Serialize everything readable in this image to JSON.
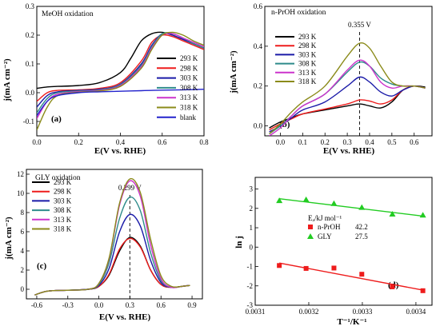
{
  "chart_data": [
    {
      "id": "a",
      "type": "line",
      "title": "MeOH oxidation",
      "panel_label": "(a)",
      "xlabel": "E(V vs. RHE)",
      "ylabel": "j(mA cm⁻²)",
      "xlim": [
        0.0,
        0.8
      ],
      "ylim": [
        -0.15,
        0.3
      ],
      "xticks": [
        "0.0",
        "0.2",
        "0.4",
        "0.6",
        "0.8"
      ],
      "xtick_values": [
        0.0,
        0.2,
        0.4,
        0.6,
        0.8
      ],
      "yticks": [
        "-0.1",
        "0.0",
        "0.1",
        "0.2",
        "0.3"
      ],
      "ytick_values": [
        -0.1,
        0.0,
        0.1,
        0.2,
        0.3
      ],
      "legend_position": "right",
      "series": [
        {
          "name": "293 K",
          "color": "#000000",
          "x": [
            0,
            0.05,
            0.1,
            0.2,
            0.3,
            0.4,
            0.45,
            0.5,
            0.55,
            0.6,
            0.65,
            0.7,
            0.75,
            0.8
          ],
          "y": [
            0.015,
            0.02,
            0.022,
            0.025,
            0.035,
            0.07,
            0.12,
            0.18,
            0.205,
            0.21,
            0.2,
            0.185,
            0.17,
            0.155
          ]
        },
        {
          "name": "298 K",
          "color": "#ee1c1c",
          "x": [
            0,
            0.05,
            0.1,
            0.2,
            0.3,
            0.4,
            0.5,
            0.55,
            0.6,
            0.65,
            0.7,
            0.75,
            0.8
          ],
          "y": [
            -0.03,
            0.0,
            0.008,
            0.01,
            0.015,
            0.035,
            0.11,
            0.175,
            0.2,
            0.195,
            0.18,
            0.165,
            0.15
          ]
        },
        {
          "name": "303 K",
          "color": "#1a1aa8",
          "x": [
            0,
            0.05,
            0.1,
            0.2,
            0.3,
            0.4,
            0.5,
            0.55,
            0.6,
            0.65,
            0.7,
            0.75,
            0.8
          ],
          "y": [
            -0.05,
            -0.01,
            0.003,
            0.008,
            0.012,
            0.03,
            0.1,
            0.165,
            0.205,
            0.2,
            0.185,
            0.17,
            0.155
          ]
        },
        {
          "name": "308 K",
          "color": "#2e8b8b",
          "x": [
            0,
            0.05,
            0.1,
            0.2,
            0.3,
            0.4,
            0.5,
            0.55,
            0.6,
            0.65,
            0.7,
            0.75,
            0.8
          ],
          "y": [
            -0.07,
            -0.02,
            0.0,
            0.006,
            0.01,
            0.028,
            0.095,
            0.16,
            0.205,
            0.205,
            0.19,
            0.17,
            0.155
          ]
        },
        {
          "name": "313 K",
          "color": "#cc33cc",
          "x": [
            0,
            0.05,
            0.1,
            0.2,
            0.3,
            0.4,
            0.5,
            0.55,
            0.6,
            0.65,
            0.7,
            0.75,
            0.8
          ],
          "y": [
            -0.09,
            -0.03,
            -0.005,
            0.004,
            0.008,
            0.025,
            0.09,
            0.155,
            0.2,
            0.205,
            0.19,
            0.175,
            0.16
          ]
        },
        {
          "name": "318 K",
          "color": "#8b8b1a",
          "x": [
            0,
            0.05,
            0.1,
            0.2,
            0.3,
            0.4,
            0.5,
            0.55,
            0.6,
            0.65,
            0.7,
            0.75,
            0.8
          ],
          "y": [
            -0.13,
            -0.05,
            -0.01,
            0.002,
            0.006,
            0.022,
            0.085,
            0.15,
            0.2,
            0.21,
            0.2,
            0.18,
            0.165
          ]
        },
        {
          "name": "blank",
          "color": "#2222cc",
          "x": [
            0,
            0.05,
            0.1,
            0.2,
            0.3,
            0.4,
            0.5,
            0.6,
            0.7,
            0.8
          ],
          "y": [
            -0.08,
            -0.03,
            -0.01,
            0.0,
            0.003,
            0.005,
            0.007,
            0.009,
            0.01,
            0.012
          ]
        }
      ]
    },
    {
      "id": "b",
      "type": "line",
      "title": "n-PrOH oxidation",
      "panel_label": "(b)",
      "xlabel": "E(V vs. RHE)",
      "ylabel": "j(mA cm⁻²)",
      "xlim": [
        -0.07,
        0.68
      ],
      "ylim": [
        -0.05,
        0.6
      ],
      "xticks": [
        "0.0",
        "0.1",
        "0.2",
        "0.3",
        "0.4",
        "0.5",
        "0.6"
      ],
      "xtick_values": [
        0.0,
        0.1,
        0.2,
        0.3,
        0.4,
        0.5,
        0.6
      ],
      "yticks": [
        "0.0",
        "0.2",
        "0.4",
        "0.6"
      ],
      "ytick_values": [
        0.0,
        0.2,
        0.4,
        0.6
      ],
      "annotation": {
        "text": "0.355 V",
        "x": 0.355
      },
      "legend_position": "top-left",
      "series": [
        {
          "name": "293 K",
          "color": "#000000",
          "x": [
            -0.05,
            0.0,
            0.05,
            0.1,
            0.2,
            0.3,
            0.355,
            0.4,
            0.45,
            0.5,
            0.55,
            0.6,
            0.65
          ],
          "y": [
            -0.01,
            0.02,
            0.04,
            0.06,
            0.08,
            0.1,
            0.11,
            0.1,
            0.09,
            0.12,
            0.18,
            0.2,
            0.195
          ]
        },
        {
          "name": "298 K",
          "color": "#ee1c1c",
          "x": [
            -0.05,
            0.0,
            0.05,
            0.1,
            0.2,
            0.3,
            0.355,
            0.4,
            0.45,
            0.5,
            0.55,
            0.6,
            0.65
          ],
          "y": [
            -0.02,
            0.01,
            0.035,
            0.06,
            0.085,
            0.11,
            0.13,
            0.125,
            0.11,
            0.13,
            0.18,
            0.2,
            0.19
          ]
        },
        {
          "name": "303 K",
          "color": "#1a1aa8",
          "x": [
            -0.05,
            0.0,
            0.05,
            0.1,
            0.2,
            0.3,
            0.355,
            0.4,
            0.45,
            0.5,
            0.55,
            0.6,
            0.65
          ],
          "y": [
            -0.03,
            0.0,
            0.04,
            0.08,
            0.12,
            0.2,
            0.245,
            0.22,
            0.17,
            0.15,
            0.18,
            0.2,
            0.19
          ]
        },
        {
          "name": "308 K",
          "color": "#2e8b8b",
          "x": [
            -0.05,
            0.0,
            0.05,
            0.1,
            0.2,
            0.3,
            0.355,
            0.4,
            0.45,
            0.5,
            0.55,
            0.6,
            0.65
          ],
          "y": [
            -0.04,
            0.0,
            0.05,
            0.1,
            0.16,
            0.27,
            0.32,
            0.3,
            0.24,
            0.21,
            0.2,
            0.2,
            0.19
          ]
        },
        {
          "name": "313 K",
          "color": "#cc33cc",
          "x": [
            -0.05,
            0.0,
            0.05,
            0.1,
            0.2,
            0.3,
            0.355,
            0.4,
            0.45,
            0.5,
            0.55,
            0.6,
            0.65
          ],
          "y": [
            -0.05,
            -0.01,
            0.05,
            0.1,
            0.16,
            0.28,
            0.33,
            0.3,
            0.22,
            0.19,
            0.2,
            0.2,
            0.19
          ]
        },
        {
          "name": "318 K",
          "color": "#8b8b1a",
          "x": [
            -0.05,
            0.0,
            0.05,
            0.1,
            0.2,
            0.3,
            0.355,
            0.4,
            0.45,
            0.5,
            0.55,
            0.6,
            0.65
          ],
          "y": [
            -0.04,
            0.01,
            0.07,
            0.12,
            0.2,
            0.35,
            0.415,
            0.39,
            0.3,
            0.22,
            0.2,
            0.2,
            0.19
          ]
        }
      ]
    },
    {
      "id": "c",
      "type": "line",
      "title": "GLY oxidation",
      "panel_label": "(c)",
      "xlabel": "E(V vs. RHE)",
      "ylabel": "j(mA cm⁻²)",
      "xlim": [
        -0.7,
        1.0
      ],
      "ylim": [
        -1,
        12.5
      ],
      "xticks": [
        "-0.6",
        "-0.3",
        "0.0",
        "0.3",
        "0.6",
        "0.9"
      ],
      "xtick_values": [
        -0.6,
        -0.3,
        0.0,
        0.3,
        0.6,
        0.9
      ],
      "yticks": [
        "0",
        "2",
        "4",
        "6",
        "8",
        "10",
        "12"
      ],
      "ytick_values": [
        0,
        2,
        4,
        6,
        8,
        10,
        12
      ],
      "annotation": {
        "text": "0.299 V",
        "x": 0.299
      },
      "legend_position": "top-left",
      "series": [
        {
          "name": "293 K",
          "color": "#000000",
          "x": [
            -0.62,
            -0.5,
            -0.3,
            -0.1,
            0.0,
            0.1,
            0.2,
            0.299,
            0.4,
            0.5,
            0.6,
            0.7,
            0.8,
            0.88
          ],
          "y": [
            -0.6,
            -0.2,
            -0.1,
            0.0,
            0.3,
            1.5,
            4.0,
            5.4,
            4.5,
            2.0,
            0.5,
            0.2,
            0.3,
            0.4
          ]
        },
        {
          "name": "298 K",
          "color": "#ee1c1c",
          "x": [
            -0.62,
            -0.5,
            -0.3,
            -0.1,
            0.0,
            0.1,
            0.2,
            0.299,
            0.4,
            0.5,
            0.6,
            0.7,
            0.8,
            0.88
          ],
          "y": [
            -0.6,
            -0.2,
            -0.1,
            0.0,
            0.3,
            1.6,
            4.2,
            5.3,
            4.4,
            2.0,
            0.5,
            0.2,
            0.3,
            0.4
          ]
        },
        {
          "name": "303 K",
          "color": "#1a1aa8",
          "x": [
            -0.62,
            -0.5,
            -0.3,
            -0.1,
            0.0,
            0.1,
            0.2,
            0.299,
            0.4,
            0.5,
            0.6,
            0.7,
            0.8,
            0.88
          ],
          "y": [
            -0.6,
            -0.2,
            -0.1,
            0.0,
            0.4,
            2.2,
            6.0,
            7.8,
            6.6,
            3.0,
            0.7,
            0.2,
            0.3,
            0.4
          ]
        },
        {
          "name": "308 K",
          "color": "#2e8b8b",
          "x": [
            -0.62,
            -0.5,
            -0.3,
            -0.1,
            0.0,
            0.1,
            0.2,
            0.299,
            0.4,
            0.5,
            0.6,
            0.7,
            0.8,
            0.88
          ],
          "y": [
            -0.6,
            -0.2,
            -0.1,
            0.0,
            0.5,
            2.8,
            7.4,
            9.6,
            8.2,
            3.8,
            0.9,
            0.2,
            0.3,
            0.4
          ]
        },
        {
          "name": "313 K",
          "color": "#cc33cc",
          "x": [
            -0.62,
            -0.5,
            -0.3,
            -0.1,
            0.0,
            0.1,
            0.2,
            0.299,
            0.4,
            0.5,
            0.6,
            0.7,
            0.8,
            0.88
          ],
          "y": [
            -0.6,
            -0.2,
            -0.1,
            0.0,
            0.6,
            3.2,
            8.8,
            11.3,
            9.7,
            4.6,
            1.1,
            0.2,
            0.3,
            0.4
          ]
        },
        {
          "name": "318 K",
          "color": "#8b8b1a",
          "x": [
            -0.62,
            -0.5,
            -0.3,
            -0.1,
            0.0,
            0.1,
            0.2,
            0.299,
            0.4,
            0.5,
            0.6,
            0.7,
            0.8,
            0.88
          ],
          "y": [
            -0.6,
            -0.2,
            -0.1,
            0.0,
            0.6,
            3.3,
            9.0,
            11.5,
            10.1,
            5.2,
            1.4,
            0.3,
            0.3,
            0.4
          ]
        }
      ]
    },
    {
      "id": "d",
      "type": "scatter",
      "title": "",
      "panel_label": "(d)",
      "xlabel": "T⁻¹/K⁻¹",
      "ylabel": "ln j",
      "xlim": [
        0.0031,
        0.00343
      ],
      "ylim": [
        -3,
        3.6
      ],
      "xticks": [
        "0.0031",
        "0.0032",
        "0.0033",
        "0.0034"
      ],
      "xtick_values": [
        0.0031,
        0.0032,
        0.0033,
        0.0034
      ],
      "yticks": [
        "-3",
        "-2",
        "-1",
        "0",
        "1",
        "2",
        "3"
      ],
      "ytick_values": [
        -3,
        -2,
        -1,
        0,
        1,
        2,
        3
      ],
      "legend_position": "center",
      "legend_header": "Eₐ/kJ mol⁻¹",
      "series": [
        {
          "name": "n-PrOH",
          "value_label": "42.2",
          "color": "#ee1c1c",
          "marker": "square",
          "x": [
            0.003145,
            0.003195,
            0.003247,
            0.003299,
            0.003356,
            0.003413
          ],
          "y": [
            -0.95,
            -1.1,
            -1.08,
            -1.4,
            -2.05,
            -2.25
          ],
          "fit": {
            "x": [
              0.003145,
              0.003413
            ],
            "y": [
              -0.82,
              -2.22
            ]
          }
        },
        {
          "name": "GLY",
          "value_label": "27.5",
          "color": "#22cc22",
          "marker": "triangle",
          "x": [
            0.003145,
            0.003195,
            0.003247,
            0.003299,
            0.003356,
            0.003413
          ],
          "y": [
            2.4,
            2.45,
            2.25,
            2.05,
            1.7,
            1.65
          ],
          "fit": {
            "x": [
              0.003145,
              0.003413
            ],
            "y": [
              2.5,
              1.6
            ]
          }
        }
      ]
    }
  ]
}
